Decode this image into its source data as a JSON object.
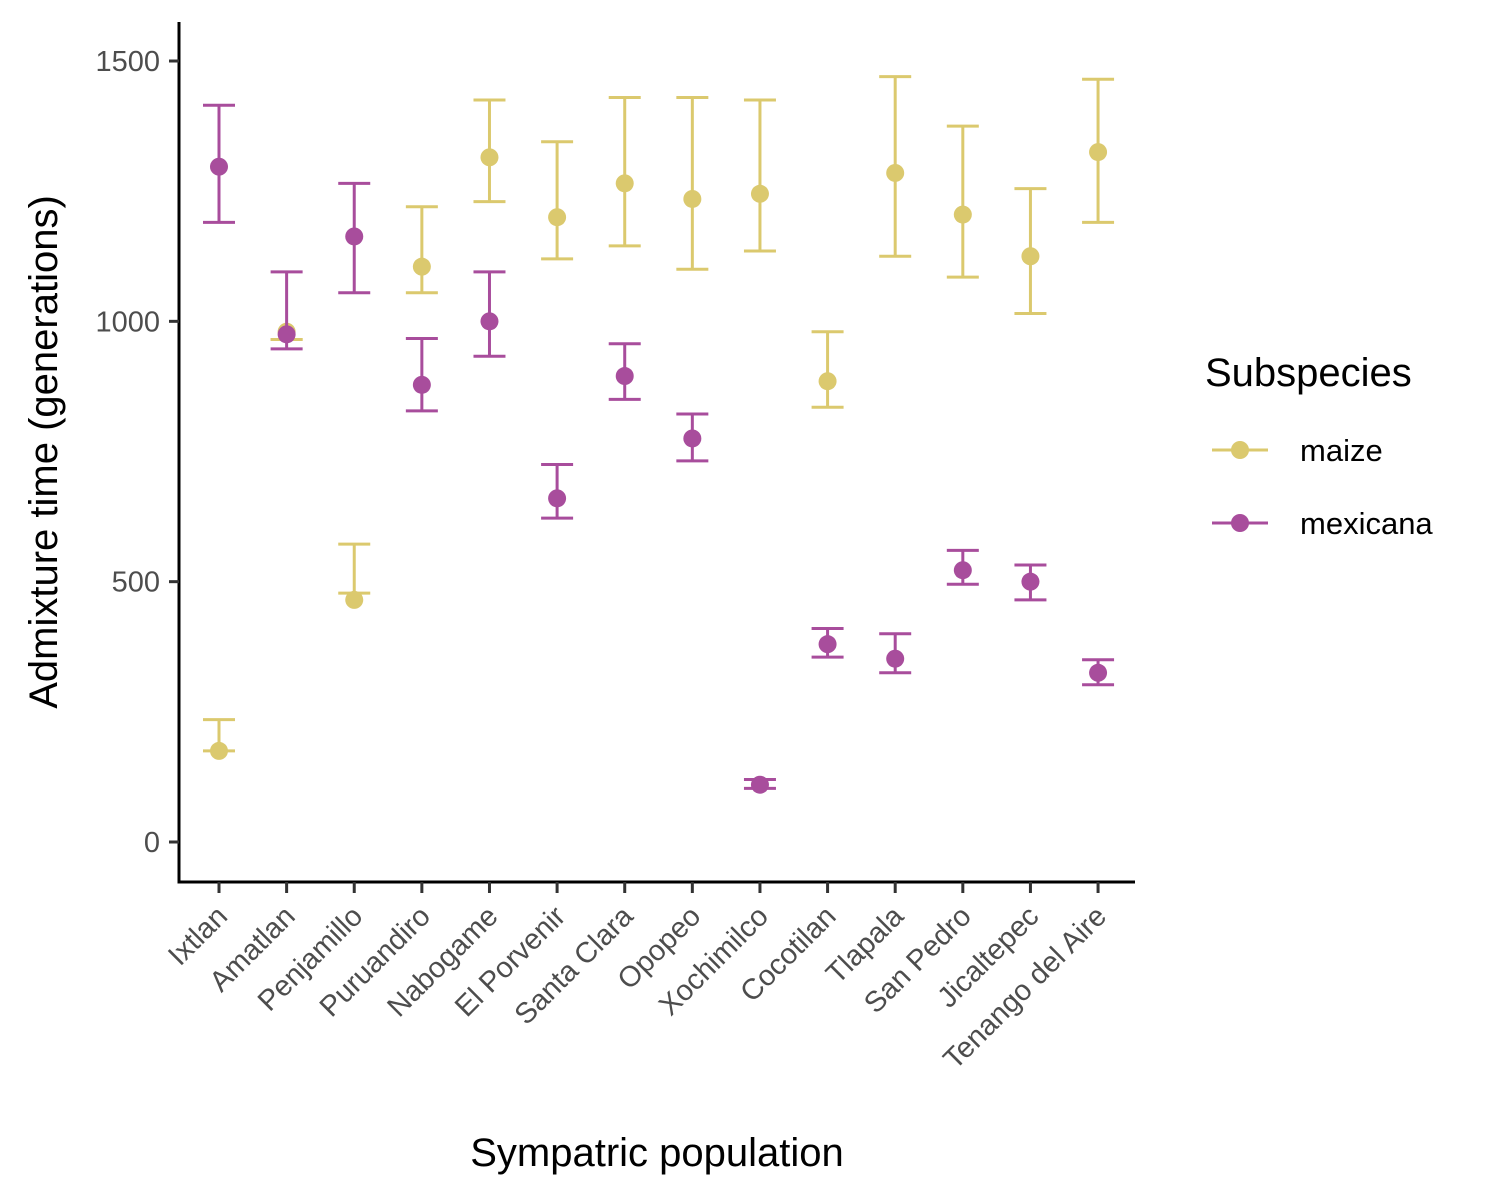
{
  "chart_data": {
    "type": "scatter",
    "title": "",
    "xlabel": "Sympatric population",
    "ylabel": "Admixture time (generations)",
    "categories": [
      "Ixtlan",
      "Amatlan",
      "Penjamillo",
      "Puruandiro",
      "Nabogame",
      "El Porvenir",
      "Santa Clara",
      "Opopeo",
      "Xochimilco",
      "Cocotilan",
      "Tlapala",
      "San Pedro",
      "Jicaltepec",
      "Tenango del Aire"
    ],
    "ylim": [
      -70,
      1570
    ],
    "yticks": [
      0,
      500,
      1000,
      1500
    ],
    "grid": false,
    "error_bars": true,
    "legend": {
      "title": "Subspecies",
      "position": "right"
    },
    "series": [
      {
        "name": "maize",
        "color": "#DBC96E",
        "values": [
          175,
          980,
          465,
          1105,
          1315,
          1200,
          1265,
          1235,
          1245,
          885,
          1285,
          1205,
          1125,
          1325
        ],
        "lower": [
          175,
          965,
          478,
          1055,
          1230,
          1120,
          1145,
          1100,
          1135,
          835,
          1125,
          1085,
          1015,
          1190
        ],
        "upper": [
          235,
          965,
          572,
          1220,
          1425,
          1345,
          1430,
          1430,
          1425,
          980,
          1470,
          1375,
          1255,
          1465
        ]
      },
      {
        "name": "mexicana",
        "color": "#A84D9C",
        "values": [
          1297,
          975,
          1163,
          878,
          1000,
          660,
          895,
          775,
          110,
          380,
          352,
          522,
          500,
          325
        ],
        "lower": [
          1190,
          947,
          1055,
          828,
          933,
          622,
          850,
          732,
          103,
          355,
          325,
          495,
          465,
          302
        ],
        "upper": [
          1415,
          1095,
          1265,
          967,
          1095,
          725,
          957,
          822,
          120,
          410,
          400,
          560,
          532,
          350
        ]
      }
    ]
  }
}
